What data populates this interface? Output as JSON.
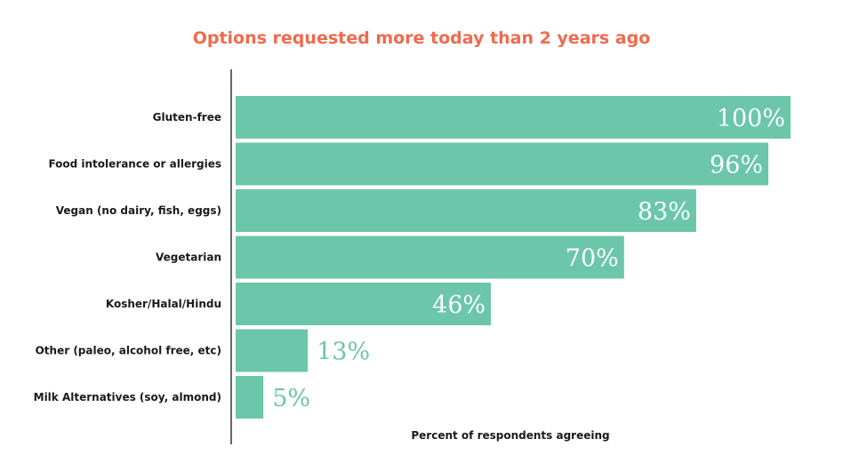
{
  "chart_data": {
    "type": "bar",
    "orientation": "horizontal",
    "title": "Options requested more today than 2 years ago",
    "xlabel": "Percent of respondents agreeing",
    "ylabel": "",
    "xlim": [
      0,
      100
    ],
    "grid": false,
    "categories": [
      "Gluten-free",
      "Food intolerance or allergies",
      "Vegan (no dairy, fish, eggs)",
      "Vegetarian",
      "Kosher/Halal/Hindu",
      "Other (paleo, alcohol free, etc)",
      "Milk Alternatives (soy, almond)"
    ],
    "values": [
      100,
      96,
      83,
      70,
      46,
      13,
      5
    ],
    "value_labels": [
      "100%",
      "96%",
      "83%",
      "70%",
      "46%",
      "13%",
      "5%"
    ]
  },
  "colors": {
    "bar": "#6cc6a9",
    "title": "#f06a4d",
    "label_inside": "#ffffff",
    "label_outside": "#6cc6a9",
    "axis": "#333333"
  }
}
